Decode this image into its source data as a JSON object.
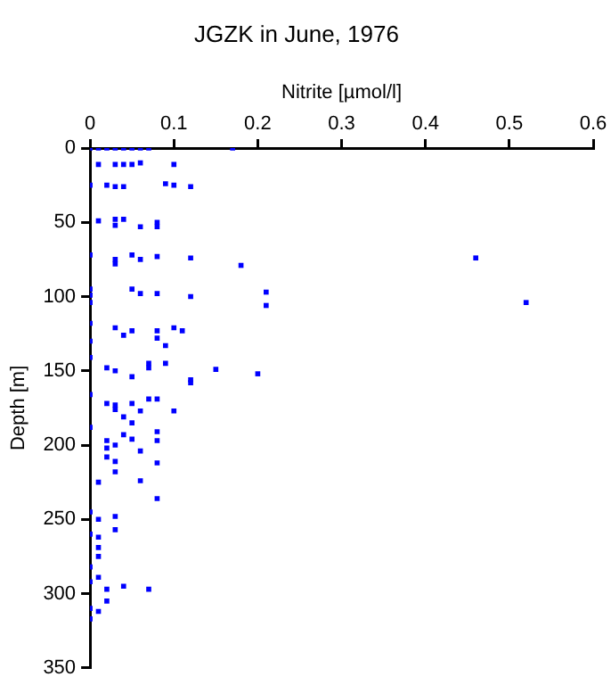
{
  "chart_data": {
    "type": "scatter",
    "title": "JGZK in June, 1976",
    "xlabel": "Nitrite [µmol/l]",
    "ylabel": "Depth [m]",
    "xlim": [
      0,
      0.6
    ],
    "xticks": [
      0,
      0.1,
      0.2,
      0.3,
      0.4,
      0.5,
      0.6
    ],
    "ylim": [
      350,
      0
    ],
    "yticks": [
      0,
      50,
      100,
      150,
      200,
      250,
      300,
      350
    ],
    "marker": "square",
    "legend": false,
    "series": [
      {
        "color": "#0000ff",
        "x": [
          0,
          0.01,
          0.02,
          0.03,
          0.04,
          0.05,
          0.06,
          0.07,
          0.17,
          0.01,
          0.03,
          0.04,
          0.05,
          0.06,
          0.1,
          0,
          0.02,
          0.03,
          0.04,
          0.09,
          0.1,
          0.12,
          0.01,
          0.03,
          0.03,
          0.04,
          0.06,
          0.08,
          0.08,
          0,
          0.05,
          0.03,
          0.03,
          0.06,
          0.08,
          0.12,
          0.18,
          0.46,
          0.05,
          0.06,
          0.08,
          0.12,
          0.21,
          0.21,
          0.52,
          0,
          0,
          0,
          0,
          0.03,
          0.04,
          0.05,
          0.08,
          0.08,
          0.1,
          0.11,
          0.09,
          0,
          0,
          0.02,
          0.03,
          0.05,
          0.07,
          0.07,
          0.09,
          0.12,
          0.12,
          0.15,
          0.2,
          0,
          0.02,
          0.03,
          0.03,
          0.05,
          0.06,
          0.07,
          0.08,
          0.1,
          0.04,
          0.05,
          0,
          0.08,
          0.04,
          0.02,
          0.05,
          0.08,
          0.02,
          0.03,
          0.06,
          0.02,
          0.03,
          0.08,
          0.03,
          0.01,
          0.06,
          0.08,
          0,
          0.01,
          0.03,
          0.03,
          0,
          0.01,
          0.01,
          0.01,
          0,
          0.01,
          0,
          0.02,
          0.04,
          0.07,
          0.02,
          0,
          0.01,
          0
        ],
        "values": [
          0,
          0,
          0,
          0,
          0,
          0,
          0,
          0,
          0,
          11,
          11,
          11,
          11,
          10,
          11,
          25,
          25,
          26,
          26,
          24,
          25,
          26,
          49,
          48,
          52,
          48,
          53,
          50,
          53,
          72,
          72,
          75,
          78,
          75,
          73,
          74,
          79,
          74,
          95,
          98,
          98,
          100,
          97,
          106,
          104,
          95,
          99,
          104,
          118,
          121,
          126,
          123,
          123,
          128,
          121,
          123,
          133,
          130,
          141,
          148,
          150,
          154,
          145,
          148,
          145,
          156,
          158,
          149,
          152,
          166,
          172,
          173,
          176,
          172,
          177,
          169,
          169,
          177,
          181,
          185,
          188,
          191,
          193,
          197,
          196,
          197,
          202,
          200,
          204,
          208,
          211,
          212,
          218,
          225,
          224,
          236,
          245,
          250,
          248,
          257,
          260,
          262,
          269,
          275,
          282,
          289,
          292,
          297,
          295,
          297,
          305,
          310,
          312,
          317
        ]
      }
    ]
  }
}
